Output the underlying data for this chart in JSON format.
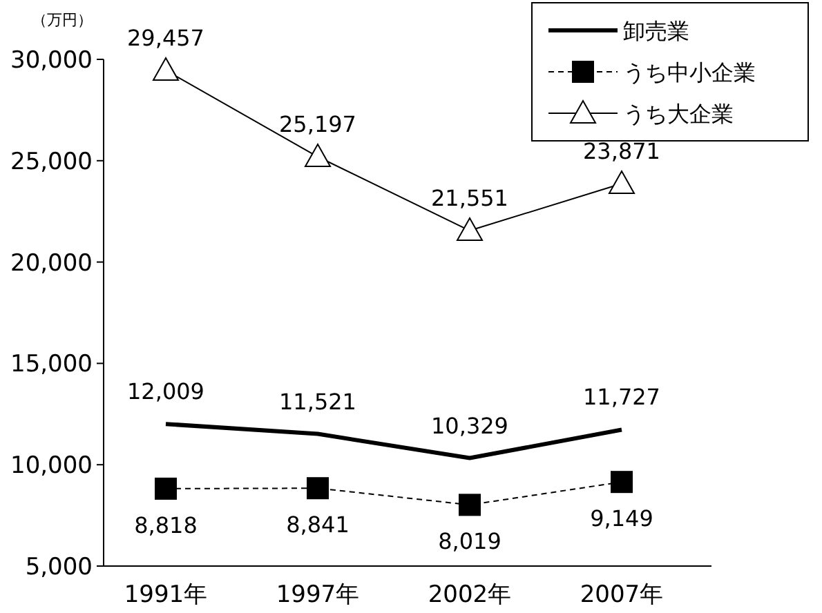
{
  "chart_data": {
    "type": "line",
    "ylabel": "（万円）",
    "categories": [
      "1991年",
      "1997年",
      "2002年",
      "2007年"
    ],
    "ylim": [
      5000,
      30000
    ],
    "yticks": [
      {
        "value": 5000,
        "label": "5,000"
      },
      {
        "value": 10000,
        "label": "10,000"
      },
      {
        "value": 15000,
        "label": "15,000"
      },
      {
        "value": 20000,
        "label": "20,000"
      },
      {
        "value": 25000,
        "label": "25,000"
      },
      {
        "value": 30000,
        "label": "30,000"
      }
    ],
    "series": [
      {
        "name": "卸売業",
        "color": "#000000",
        "values": [
          12009,
          11521,
          10329,
          11727
        ],
        "value_labels": [
          "12,009",
          "11,521",
          "10,329",
          "11,727"
        ],
        "marker": "none",
        "line_style": "solid"
      },
      {
        "name": "うち中小企業",
        "color": "#000000",
        "values": [
          8818,
          8841,
          8019,
          9149
        ],
        "value_labels": [
          "8,818",
          "8,841",
          "8,019",
          "9,149"
        ],
        "marker": "square",
        "line_style": "dashed"
      },
      {
        "name": "うち大企業",
        "color": "#000000",
        "values": [
          29457,
          25197,
          21551,
          23871
        ],
        "value_labels": [
          "29,457",
          "25,197",
          "21,551",
          "23,871"
        ],
        "marker": "triangle",
        "line_style": "solid"
      }
    ],
    "legend": "top right",
    "grid": false
  }
}
